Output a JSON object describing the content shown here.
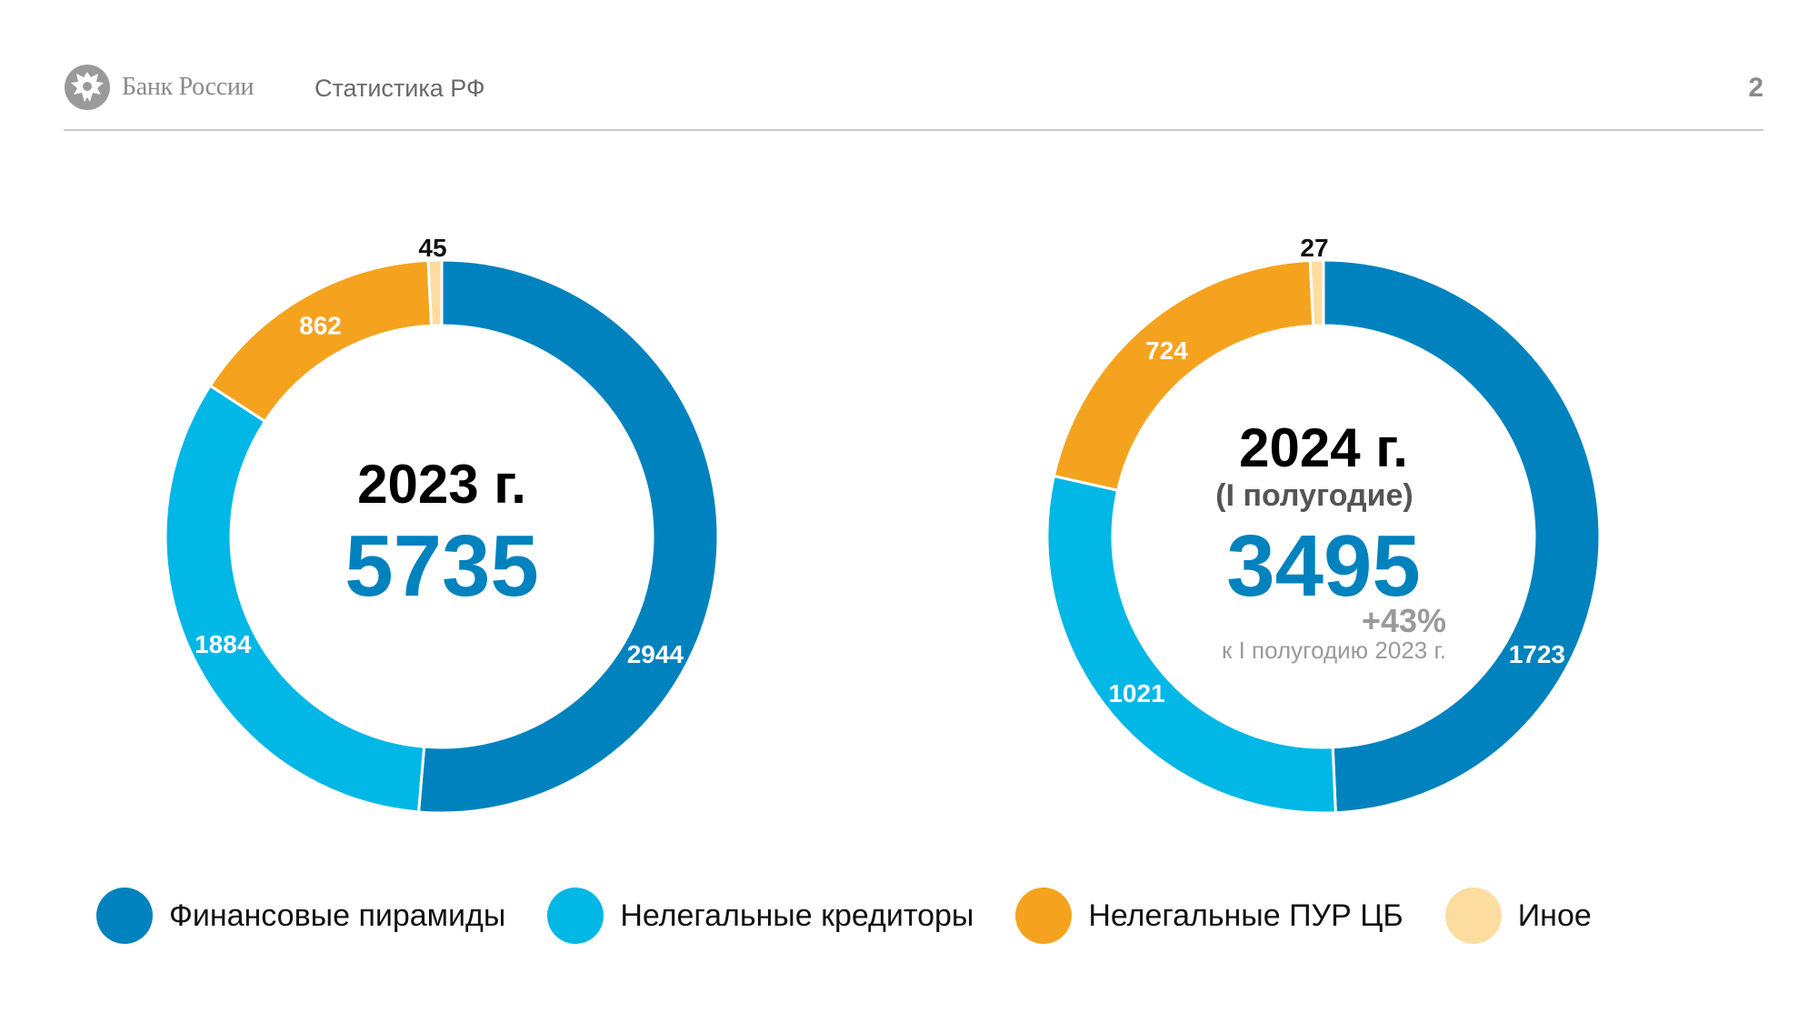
{
  "header": {
    "bank_name": "Банк России",
    "title": "Статистика РФ",
    "page_number": "2",
    "logo_icon": "eagle-emblem-icon"
  },
  "colors": {
    "dark_blue": "#0082be",
    "light_blue": "#00b7e6",
    "orange": "#f5a31e",
    "pale": "#fddca0",
    "header_gray": "#8a8a8a",
    "subtext_gray": "#9a9a9a"
  },
  "chart_data": [
    {
      "type": "pie",
      "donut": true,
      "center": {
        "year": "2023 г.",
        "subtitle": "",
        "total": "5735",
        "change": "",
        "change_note": ""
      },
      "slices": [
        {
          "label": "Финансовые пирамиды",
          "value": 2944,
          "color": "#0082be"
        },
        {
          "label": "Нелегальные кредиторы",
          "value": 1884,
          "color": "#00b7e6"
        },
        {
          "label": "Нелегальные ПУР ЦБ",
          "value": 862,
          "color": "#f5a31e"
        },
        {
          "label": "Иное",
          "value": 45,
          "color": "#fddca0"
        }
      ]
    },
    {
      "type": "pie",
      "donut": true,
      "center": {
        "year": "2024 г.",
        "subtitle": "(I полугодие)",
        "total": "3495",
        "change": "+43%",
        "change_note": "к I полугодию 2023 г."
      },
      "slices": [
        {
          "label": "Финансовые пирамиды",
          "value": 1723,
          "color": "#0082be"
        },
        {
          "label": "Нелегальные кредиторы",
          "value": 1021,
          "color": "#00b7e6"
        },
        {
          "label": "Нелегальные ПУР ЦБ",
          "value": 724,
          "color": "#f5a31e"
        },
        {
          "label": "Иное",
          "value": 27,
          "color": "#fddca0"
        }
      ]
    }
  ],
  "legend": [
    {
      "label": "Финансовые пирамиды",
      "color": "#0082be"
    },
    {
      "label": "Нелегальные кредиторы",
      "color": "#00b7e6"
    },
    {
      "label": "Нелегальные ПУР ЦБ",
      "color": "#f5a31e"
    },
    {
      "label": "Иное",
      "color": "#fddca0"
    }
  ]
}
